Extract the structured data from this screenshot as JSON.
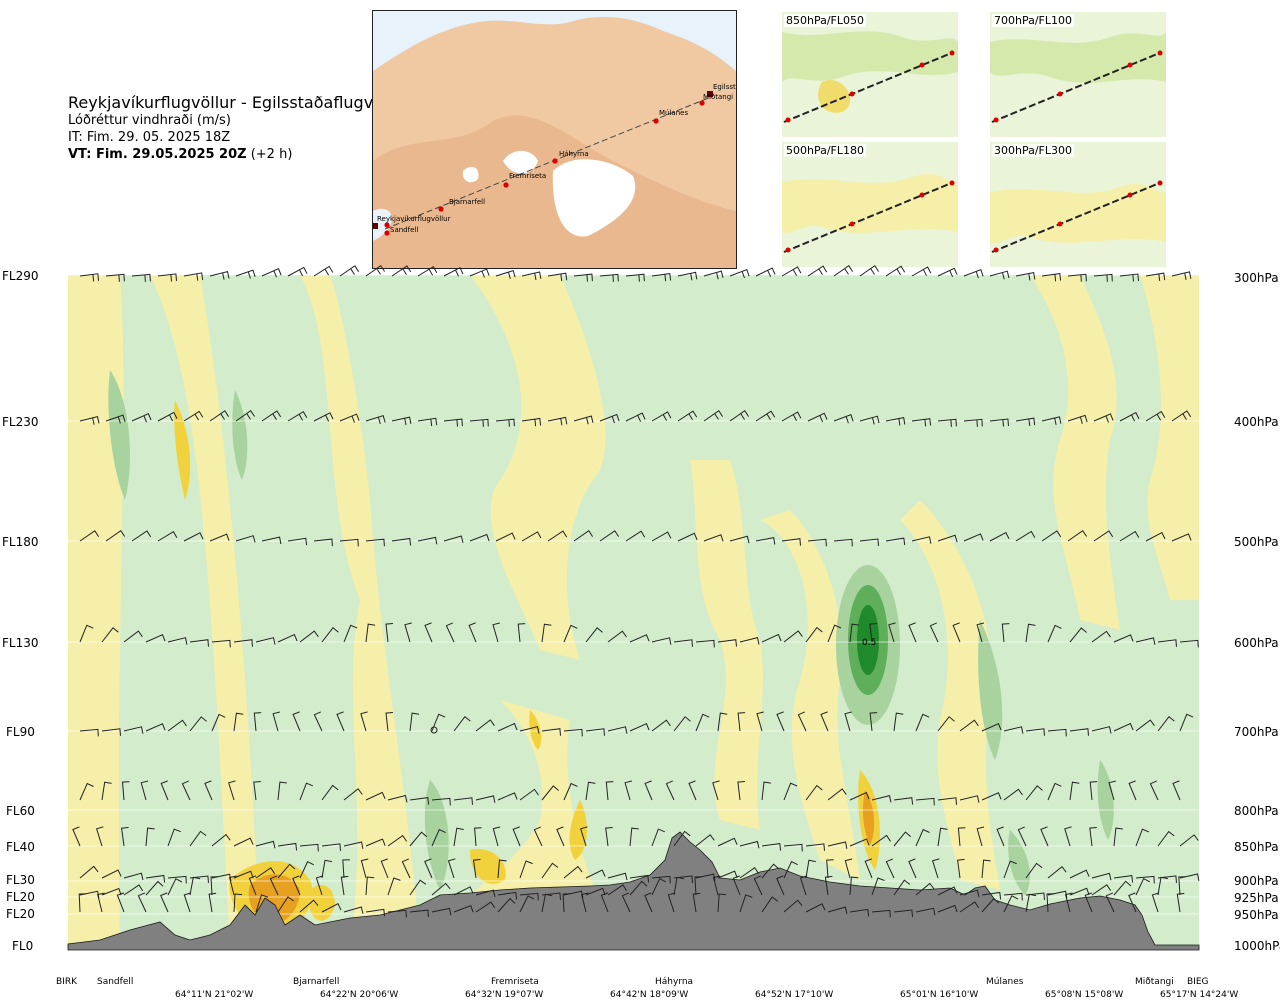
{
  "header": {
    "title": "Reykjavíkurflugvöllur - Egilsstaðaflugvöllur",
    "subtitle": "Lóðréttur vindhraði (m/s)",
    "it": "IT: Fim. 29. 05. 2025 18Z",
    "vt_bold": "VT: Fim. 29.05.2025 20Z",
    "vt_suffix": "(+2 h)"
  },
  "map": {
    "stations": [
      "Reykjavíkurflugvöllur",
      "Sandfell",
      "Bjarnarfell",
      "Fremriseta",
      "Háhyrna",
      "Múlanes",
      "Miðtangi",
      "Egilsst"
    ]
  },
  "thumbnails": [
    {
      "label": "850hPa/FL050"
    },
    {
      "label": "700hPa/FL100"
    },
    {
      "label": "500hPa/FL180"
    },
    {
      "label": "300hPa/FL300"
    }
  ],
  "chart_data": {
    "type": "heatmap",
    "title": "Lóðréttur vindhraði (m/s)",
    "levels": [
      {
        "fl": "FL290",
        "hpa": "300hPa"
      },
      {
        "fl": "FL230",
        "hpa": "400hPa"
      },
      {
        "fl": "FL180",
        "hpa": "500hPa"
      },
      {
        "fl": "FL130",
        "hpa": "600hPa"
      },
      {
        "fl": "FL90",
        "hpa": "700hPa"
      },
      {
        "fl": "FL60",
        "hpa": "800hPa"
      },
      {
        "fl": "FL40",
        "hpa": "850hPa"
      },
      {
        "fl": "FL30",
        "hpa": "900hPa"
      },
      {
        "fl": "FL20",
        "hpa": "925hPa"
      },
      {
        "fl": "FL20",
        "hpa": "950hPa"
      },
      {
        "fl": "FL0",
        "hpa": "1000hPa"
      }
    ],
    "x_stations": [
      "BIRK",
      "Sandfell",
      "Bjarnarfell",
      "Fremriseta",
      "Háhyrna",
      "Múlanes",
      "Miðtangi",
      "BIEG"
    ],
    "x_coords": [
      "64°11'N 21°02'W",
      "64°22'N 20°06'W",
      "64°32'N 19°07'W",
      "64°42'N 18°09'W",
      "64°52'N 17°10'W",
      "65°01'N 16°10'W",
      "65°08'N 15°08'W",
      "65°17'N 14°24'W"
    ],
    "annotation": "0.5",
    "colors": {
      "strong_sink": "#e8a020",
      "sink": "#f2d23c",
      "weak_sink": "#f6efaa",
      "weak_rise": "#d3eccb",
      "rise": "#a8d39e",
      "strong_rise": "#1f8a2c",
      "terrain": "#808080"
    }
  }
}
